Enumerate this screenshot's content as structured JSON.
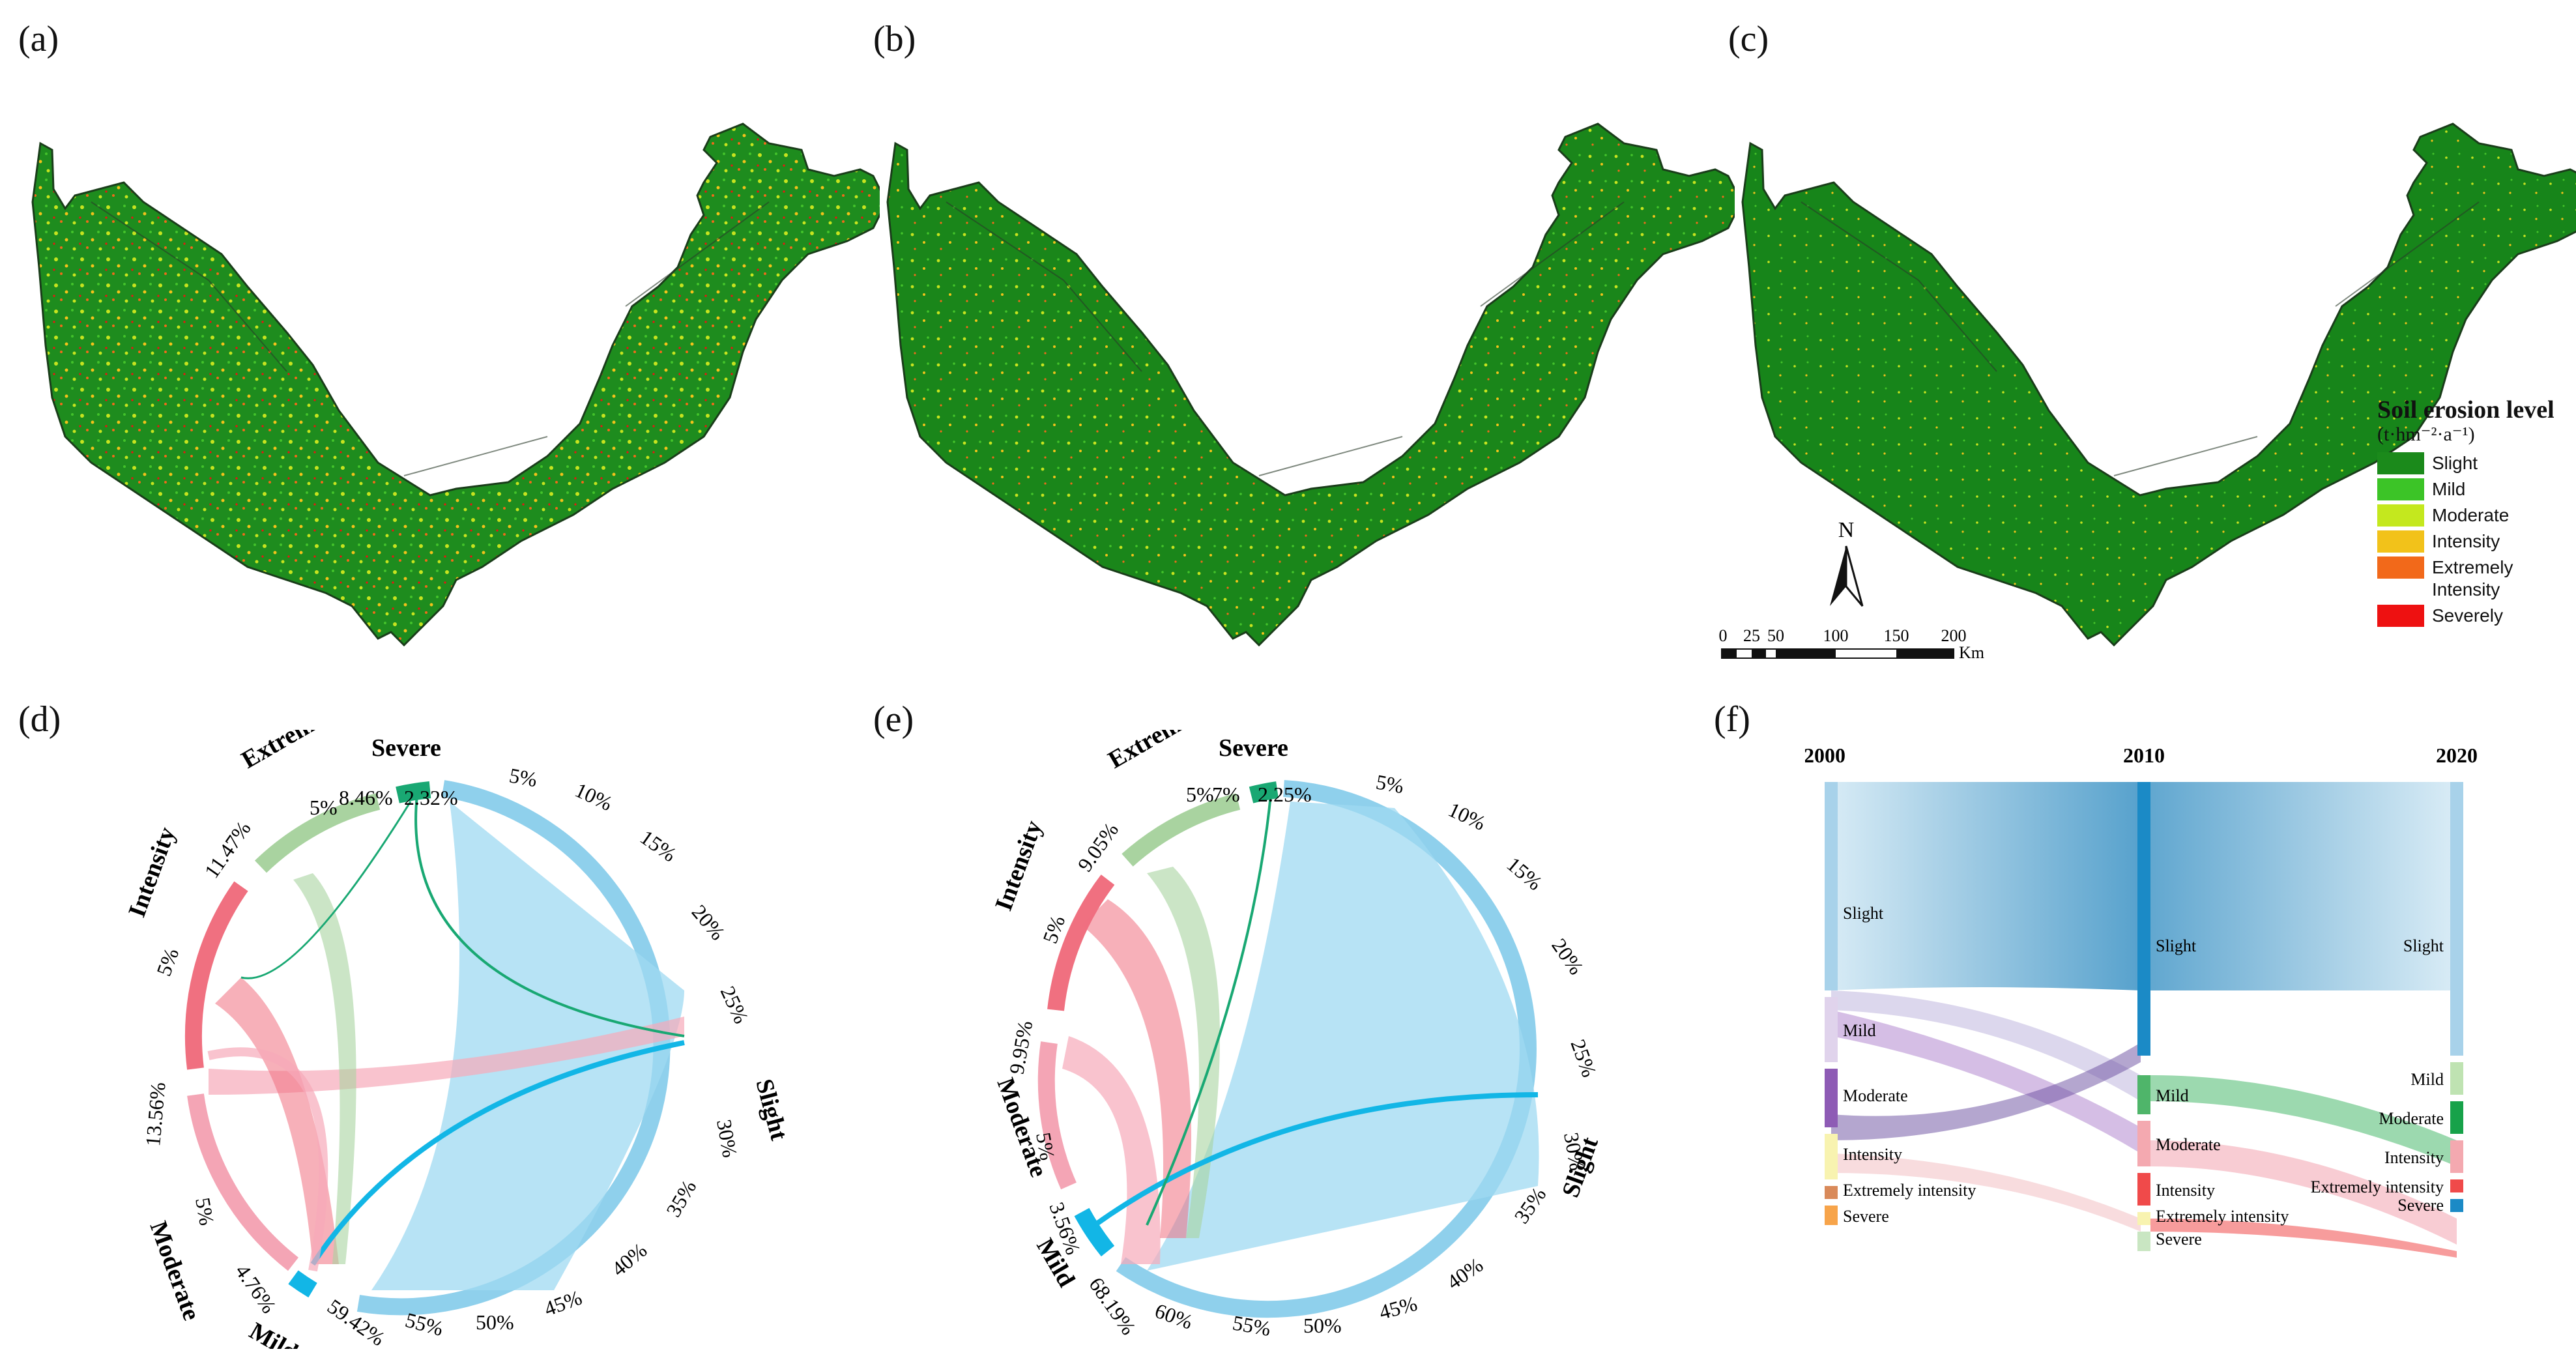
{
  "panels": {
    "a": "(a)",
    "b": "(b)",
    "c": "(c)",
    "d": "(d)",
    "e": "(e)",
    "f": "(f)"
  },
  "legend": {
    "title": "Soil erosion level",
    "unit": "(t·hm⁻²·a⁻¹)",
    "items": [
      {
        "label": "Slight",
        "color": "#1b8a1b"
      },
      {
        "label": "Mild",
        "color": "#3cc427"
      },
      {
        "label": "Moderate",
        "color": "#c4e81e"
      },
      {
        "label": "Intensity",
        "color": "#f2c21a"
      },
      {
        "label": "Extremely Intensity",
        "color": "#f2691a"
      },
      {
        "label": "Severely",
        "color": "#ee1111"
      }
    ]
  },
  "north_arrow": {
    "label": "N"
  },
  "scale_bar": {
    "ticks": [
      "0",
      "25",
      "50",
      "100",
      "150",
      "200"
    ],
    "unit": "Km"
  },
  "chord_d": {
    "labels": {
      "extremely": "Extremely intensity",
      "severe": "Severe",
      "intensity": "Intensity",
      "moderate": "Moderate",
      "mild": "Mild",
      "slight": "Slight"
    },
    "percents": [
      "5%",
      "8.46%",
      "2.32%",
      "11.47%",
      "5%",
      "13.56%",
      "5%",
      "4.76%",
      "59.42%",
      "55%",
      "50%",
      "45%",
      "40%",
      "35%",
      "30%",
      "25%",
      "20%",
      "15%",
      "10%",
      "5%"
    ]
  },
  "chord_e": {
    "labels": {
      "extremely": "Extremely intensity",
      "severe": "Severe",
      "intensity": "Intensity",
      "moderate": "Moderate",
      "mild": "Mild",
      "slight": "Slight"
    },
    "percents": [
      "5%",
      "7%",
      "2.25%",
      "9.05%",
      "5%",
      "9.95%",
      "5%",
      "3.56%",
      "68.19%",
      "60%",
      "55%",
      "50%",
      "45%",
      "40%",
      "35%",
      "30%",
      "25%",
      "20%",
      "15%",
      "10%",
      "5%"
    ]
  },
  "chart_data": {
    "type": "sankey",
    "columns": [
      "2000",
      "2010",
      "2020"
    ],
    "categories": [
      "Slight",
      "Mild",
      "Moderate",
      "Intensity",
      "Extremely intensity",
      "Severe"
    ],
    "colors": {
      "Slight": "#7fbfe0",
      "Mild": "#c8a8d8",
      "Moderate": "#8e5bb5",
      "Intensity": "#f5f0a0",
      "Extremely intensity": "#d98a5a",
      "Severe": "#f7a44a"
    },
    "proportions_2000": [
      59.42,
      4.76,
      13.56,
      11.47,
      8.46,
      2.32
    ],
    "proportions_2010": [
      68.19,
      3.56,
      9.95,
      9.05,
      7.0,
      2.25
    ]
  }
}
